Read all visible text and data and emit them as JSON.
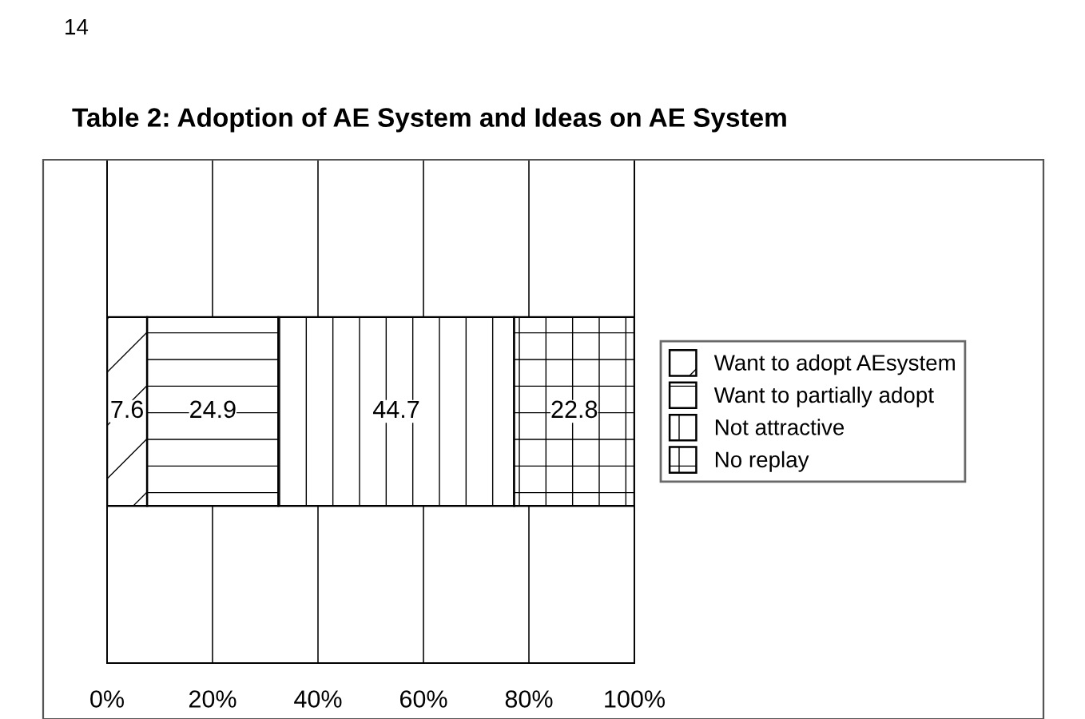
{
  "chart_data": {
    "type": "bar",
    "orientation": "horizontal",
    "stacked": true,
    "title": "Table 2: Adoption of AE System and Ideas on AE System",
    "annotations": [
      "14"
    ],
    "categories": [
      null
    ],
    "series": [
      {
        "name": "Want to adopt AEsystem",
        "color": "#000000",
        "values": [
          7.6
        ]
      },
      {
        "name": "Want to partially adopt",
        "color": "#000000",
        "values": [
          24.9
        ]
      },
      {
        "name": "Not attractive",
        "color": "#000000",
        "values": [
          44.7
        ]
      },
      {
        "name": "No replay",
        "color": "#000000",
        "values": [
          22.8
        ]
      }
    ],
    "xlim": [
      0,
      100
    ],
    "xticks": [
      {
        "value": 0,
        "label": "0%"
      },
      {
        "value": 20,
        "label": "20%"
      },
      {
        "value": 40,
        "label": "40%"
      },
      {
        "value": 60,
        "label": "60%"
      },
      {
        "value": 80,
        "label": "80%"
      },
      {
        "value": 100,
        "label": "100%"
      }
    ],
    "grid": "x",
    "legend": "right",
    "data_labels": true
  }
}
